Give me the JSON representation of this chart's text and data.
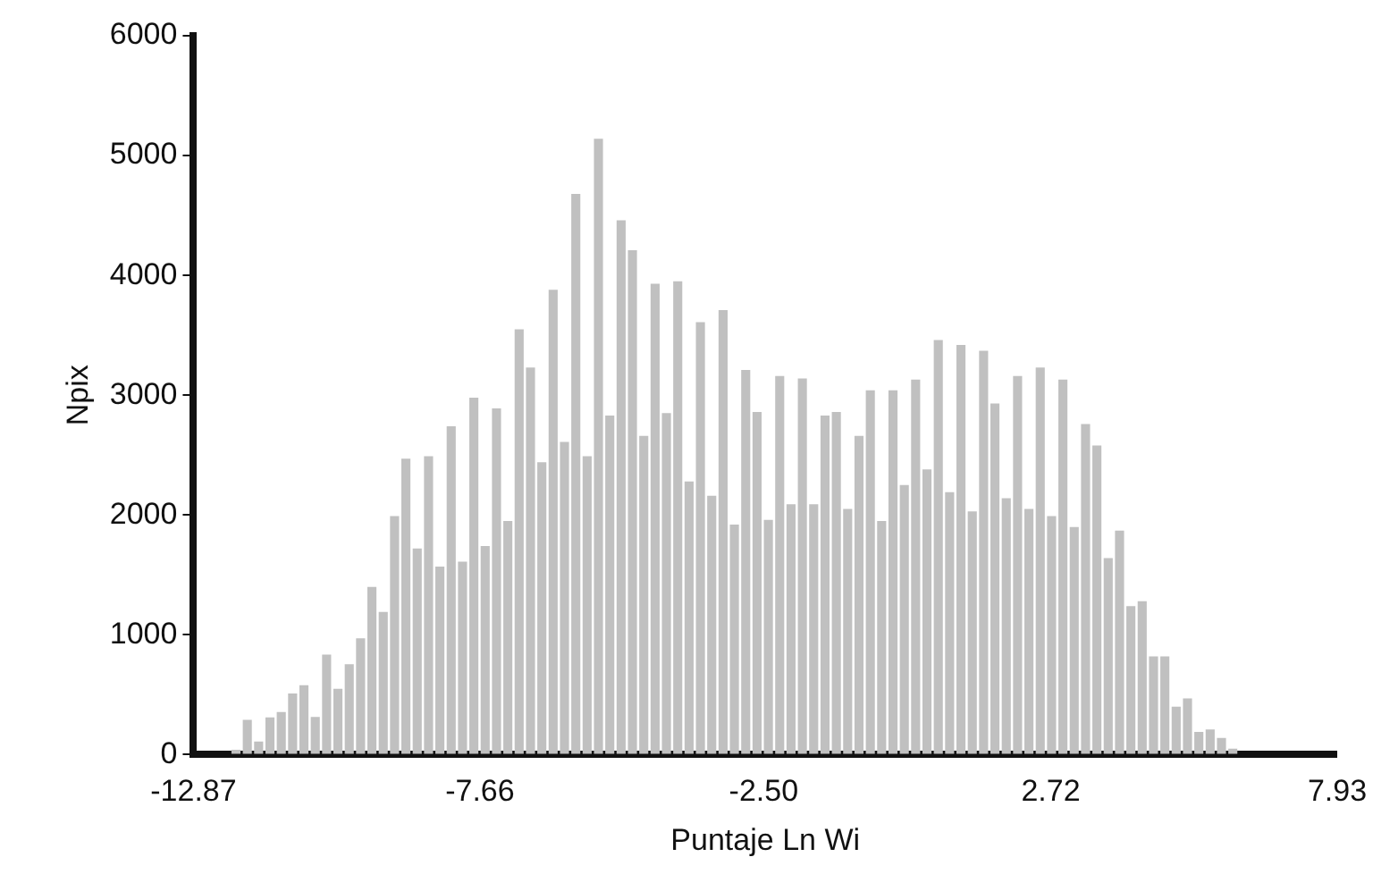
{
  "chart_data": {
    "type": "histogram",
    "xlabel": "Puntaje Ln Wi",
    "ylabel": "Npix",
    "color": "#c0c0c0",
    "grid": false,
    "bins": [
      -12.2,
      -11.994,
      -11.788,
      -11.582,
      -11.376,
      -11.17,
      -10.964,
      -10.758,
      -10.552,
      -10.346,
      -10.14,
      -9.934,
      -9.728,
      -9.522,
      -9.316,
      -9.11,
      -8.904,
      -8.698,
      -8.492,
      -8.286,
      -8.08,
      -7.874,
      -7.668,
      -7.462,
      -7.256,
      -7.05,
      -6.844,
      -6.638,
      -6.432,
      -6.226,
      -6.02,
      -5.814,
      -5.608,
      -5.402,
      -5.196,
      -4.99,
      -4.784,
      -4.578,
      -4.372,
      -4.166,
      -3.96,
      -3.754,
      -3.548,
      -3.342,
      -3.136,
      -2.93,
      -2.724,
      -2.518,
      -2.312,
      -2.106,
      -1.9,
      -1.694,
      -1.488,
      -1.282,
      -1.076,
      -0.87,
      -0.664,
      -0.458,
      -0.252,
      -0.046,
      0.16,
      0.366,
      0.572,
      0.778,
      0.984,
      1.19,
      1.396,
      1.602,
      1.808,
      2.014,
      2.22,
      2.426,
      2.632,
      2.838,
      3.044,
      3.25,
      3.456,
      3.662,
      3.868,
      4.074,
      4.28,
      4.486,
      4.692,
      4.898,
      5.104,
      5.31,
      5.516,
      5.722,
      5.928,
      6.134,
      6.34,
      6.546
    ],
    "values": [
      40,
      290,
      110,
      310,
      355,
      510,
      580,
      315,
      835,
      550,
      755,
      970,
      1400,
      1190,
      1990,
      2470,
      1720,
      2490,
      1570,
      2740,
      1610,
      2980,
      1740,
      2890,
      1950,
      3550,
      3230,
      2440,
      3880,
      2610,
      4680,
      2490,
      5140,
      2830,
      4460,
      4210,
      2660,
      3930,
      2850,
      3950,
      2280,
      3610,
      2160,
      3710,
      1920,
      3210,
      2860,
      1960,
      3160,
      2090,
      3140,
      2090,
      2830,
      2860,
      2050,
      2660,
      3040,
      1950,
      3040,
      2250,
      3130,
      2380,
      3460,
      2190,
      3420,
      2030,
      3370,
      2930,
      2140,
      3160,
      2050,
      3230,
      1990,
      3130,
      1900,
      2760,
      2580,
      1640,
      1870,
      1240,
      1280,
      820,
      820,
      400,
      470,
      190,
      210,
      140,
      50,
      null,
      null
    ],
    "xlim": [
      -12.87,
      7.93
    ],
    "xticks": [
      -12.87,
      -7.66,
      {
        "value": -2.5,
        "label": "-2.50"
      },
      2.72,
      7.93
    ],
    "ylim": [
      0,
      6000
    ],
    "yticks": [
      0,
      1000,
      2000,
      3000,
      4000,
      5000,
      6000
    ]
  }
}
